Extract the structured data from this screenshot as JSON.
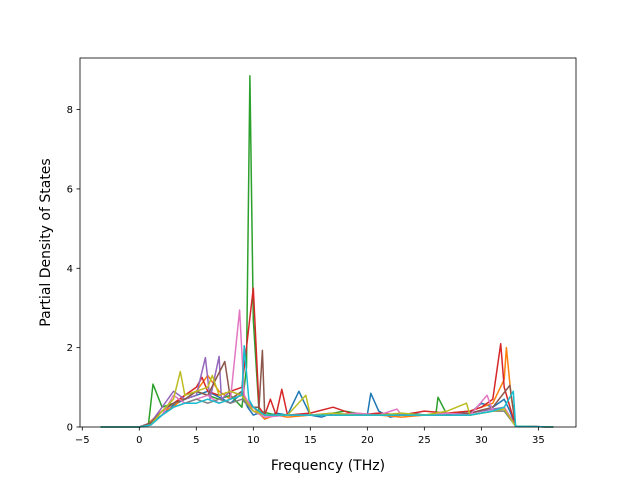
{
  "chart_data": {
    "type": "line",
    "title": "",
    "xlabel": "Frequency (THz)",
    "ylabel": "Partial Density of States",
    "xlim": [
      -5.2,
      38.3
    ],
    "ylim": [
      0,
      9.3
    ],
    "xticks": [
      -5,
      0,
      5,
      10,
      15,
      20,
      25,
      30,
      35
    ],
    "xtick_labels": [
      "−5",
      "0",
      "5",
      "10",
      "15",
      "20",
      "25",
      "30",
      "35"
    ],
    "yticks": [
      0,
      2,
      4,
      6,
      8
    ],
    "ytick_labels": [
      "0",
      "2",
      "4",
      "6",
      "8"
    ],
    "grid": false,
    "legend": "none",
    "series": [
      {
        "color": "#1f77b4",
        "x": [
          -3.4,
          0,
          0.5,
          2,
          3,
          4,
          5,
          6,
          7,
          8,
          9,
          9.5,
          10,
          10.5,
          11,
          12,
          13,
          14,
          15,
          16,
          17,
          18,
          19,
          20,
          20.3,
          21,
          22,
          23,
          24,
          25,
          26,
          27,
          28,
          29,
          30,
          31,
          32,
          32.5,
          33,
          36.3
        ],
        "y": [
          0,
          0,
          0.02,
          0.3,
          0.55,
          0.7,
          0.8,
          0.9,
          0.75,
          0.6,
          0.85,
          0.5,
          0.3,
          0.35,
          0.2,
          0.35,
          0.3,
          0.9,
          0.3,
          0.25,
          0.35,
          0.3,
          0.35,
          0.3,
          0.85,
          0.4,
          0.25,
          0.3,
          0.35,
          0.3,
          0.3,
          0.3,
          0.35,
          0.35,
          0.6,
          0.5,
          0.7,
          0.4,
          0.02,
          0
        ]
      },
      {
        "color": "#ff7f0e",
        "x": [
          -3.4,
          0,
          0.5,
          2,
          3,
          4,
          5,
          6,
          7,
          8,
          9,
          10,
          11,
          12,
          13,
          15,
          17,
          19,
          21,
          23,
          25,
          27,
          29,
          30,
          31,
          31.5,
          32,
          32.2,
          32.6,
          33,
          36.3
        ],
        "y": [
          0,
          0,
          0.02,
          0.4,
          0.5,
          0.8,
          0.9,
          1.3,
          0.9,
          0.7,
          0.8,
          0.5,
          0.2,
          0.3,
          0.25,
          0.3,
          0.3,
          0.35,
          0.3,
          0.25,
          0.3,
          0.35,
          0.4,
          0.5,
          0.6,
          0.9,
          1.2,
          2.0,
          0.8,
          0.02,
          0
        ]
      },
      {
        "color": "#2ca02c",
        "x": [
          -3.4,
          0,
          0.8,
          1.2,
          2,
          3,
          4,
          5,
          6,
          7,
          8,
          9,
          9.4,
          9.7,
          10,
          10.5,
          12,
          14,
          16,
          18,
          20,
          22,
          24,
          26,
          26.2,
          27,
          29,
          31,
          32,
          33,
          36.3
        ],
        "y": [
          0,
          0,
          0.05,
          1.08,
          0.5,
          0.6,
          0.7,
          0.9,
          0.8,
          0.7,
          0.8,
          0.5,
          1.5,
          8.85,
          2.7,
          0.4,
          0.3,
          0.3,
          0.3,
          0.4,
          0.3,
          0.3,
          0.3,
          0.3,
          0.75,
          0.3,
          0.3,
          0.4,
          0.5,
          0.02,
          0
        ]
      },
      {
        "color": "#d62728",
        "x": [
          -3.4,
          0,
          1,
          2,
          3,
          4,
          5,
          5.5,
          6,
          7,
          8,
          9,
          10,
          10.5,
          11,
          11.5,
          12,
          12.5,
          13,
          15,
          17,
          19,
          21,
          23,
          25,
          27,
          29,
          30,
          31,
          31.7,
          32,
          33,
          36.3
        ],
        "y": [
          0,
          0,
          0.1,
          0.4,
          0.6,
          0.8,
          1.0,
          1.25,
          0.9,
          0.8,
          0.9,
          1.0,
          3.5,
          0.5,
          0.3,
          0.7,
          0.3,
          0.95,
          0.3,
          0.35,
          0.5,
          0.3,
          0.35,
          0.3,
          0.4,
          0.35,
          0.4,
          0.5,
          0.7,
          2.1,
          1.0,
          0.02,
          0
        ]
      },
      {
        "color": "#9467bd",
        "x": [
          -3.4,
          0,
          1,
          2,
          3,
          4,
          5,
          5.8,
          6.2,
          7,
          7.2,
          8,
          9,
          10,
          11,
          13,
          15,
          17,
          19,
          21,
          23,
          25,
          27,
          29,
          31,
          32,
          33,
          36.3
        ],
        "y": [
          0,
          0,
          0.1,
          0.5,
          0.9,
          0.7,
          0.8,
          1.75,
          0.7,
          1.78,
          0.7,
          0.9,
          0.8,
          0.5,
          0.3,
          0.3,
          0.3,
          0.35,
          0.3,
          0.3,
          0.3,
          0.3,
          0.3,
          0.35,
          0.45,
          0.5,
          0.02,
          0
        ]
      },
      {
        "color": "#8c564b",
        "x": [
          -3.4,
          0,
          1,
          2,
          3,
          4,
          5,
          6,
          7.5,
          8,
          9,
          9.5,
          10,
          10.5,
          10.8,
          11,
          13,
          15,
          17,
          19,
          21,
          23,
          25,
          27,
          29,
          31,
          32.5,
          33,
          36.3
        ],
        "y": [
          0,
          0,
          0.1,
          0.4,
          0.6,
          0.7,
          0.9,
          0.8,
          1.65,
          0.7,
          0.9,
          0.6,
          0.5,
          0.5,
          1.93,
          0.3,
          0.3,
          0.3,
          0.3,
          0.3,
          0.3,
          0.3,
          0.3,
          0.3,
          0.35,
          0.5,
          1.05,
          0.02,
          0
        ]
      },
      {
        "color": "#e377c2",
        "x": [
          -3.4,
          0,
          1,
          2,
          3,
          4,
          5,
          6,
          7,
          8,
          8.8,
          9.2,
          10,
          11,
          13,
          15,
          17,
          19,
          21,
          22.6,
          23,
          25,
          27,
          29,
          30.5,
          31,
          32,
          33,
          36.3
        ],
        "y": [
          0,
          0,
          0.05,
          0.3,
          0.8,
          0.6,
          0.7,
          0.8,
          0.6,
          0.7,
          2.95,
          0.8,
          0.4,
          0.25,
          0.3,
          0.3,
          0.3,
          0.35,
          0.3,
          0.45,
          0.3,
          0.3,
          0.35,
          0.3,
          0.8,
          0.4,
          0.5,
          0.02,
          0
        ]
      },
      {
        "color": "#7f7f7f",
        "x": [
          -3.4,
          0,
          1,
          2,
          3,
          4,
          5,
          6,
          7,
          8,
          9,
          10,
          11,
          13,
          15,
          17,
          19,
          21,
          23,
          25,
          27,
          29,
          31,
          32,
          33,
          36.3
        ],
        "y": [
          0,
          0,
          0.05,
          0.3,
          0.5,
          0.6,
          0.7,
          0.6,
          0.7,
          0.6,
          0.7,
          0.4,
          0.3,
          0.3,
          0.3,
          0.3,
          0.3,
          0.3,
          0.3,
          0.3,
          0.3,
          0.3,
          0.4,
          0.4,
          0.02,
          0
        ]
      },
      {
        "color": "#bcbd22",
        "x": [
          -3.4,
          0,
          1,
          2,
          3,
          3.6,
          4,
          5,
          6,
          6.4,
          7,
          8,
          9,
          10,
          11,
          13,
          14.6,
          15,
          17,
          19,
          21,
          23,
          25,
          27,
          28.7,
          29,
          31,
          32,
          33,
          36.3
        ],
        "y": [
          0,
          0,
          0.05,
          0.4,
          0.7,
          1.4,
          0.8,
          0.9,
          1.0,
          1.3,
          0.8,
          0.9,
          0.8,
          0.4,
          0.3,
          0.3,
          0.8,
          0.3,
          0.35,
          0.3,
          0.3,
          0.35,
          0.3,
          0.4,
          0.6,
          0.3,
          0.4,
          0.45,
          0.02,
          0
        ]
      },
      {
        "color": "#17becf",
        "x": [
          -3.4,
          0,
          1,
          2,
          3,
          4,
          5,
          6,
          7,
          8,
          9,
          9.2,
          9.6,
          10,
          11,
          13,
          15,
          17,
          19,
          21,
          23,
          25,
          27,
          29,
          31,
          32,
          32.8,
          33,
          36.3
        ],
        "y": [
          0,
          0,
          0.05,
          0.3,
          0.5,
          0.6,
          0.6,
          0.7,
          0.6,
          0.7,
          0.8,
          2.05,
          0.7,
          0.5,
          0.3,
          0.3,
          0.3,
          0.3,
          0.3,
          0.3,
          0.3,
          0.3,
          0.3,
          0.3,
          0.4,
          0.5,
          0.9,
          0.02,
          0
        ]
      }
    ]
  }
}
